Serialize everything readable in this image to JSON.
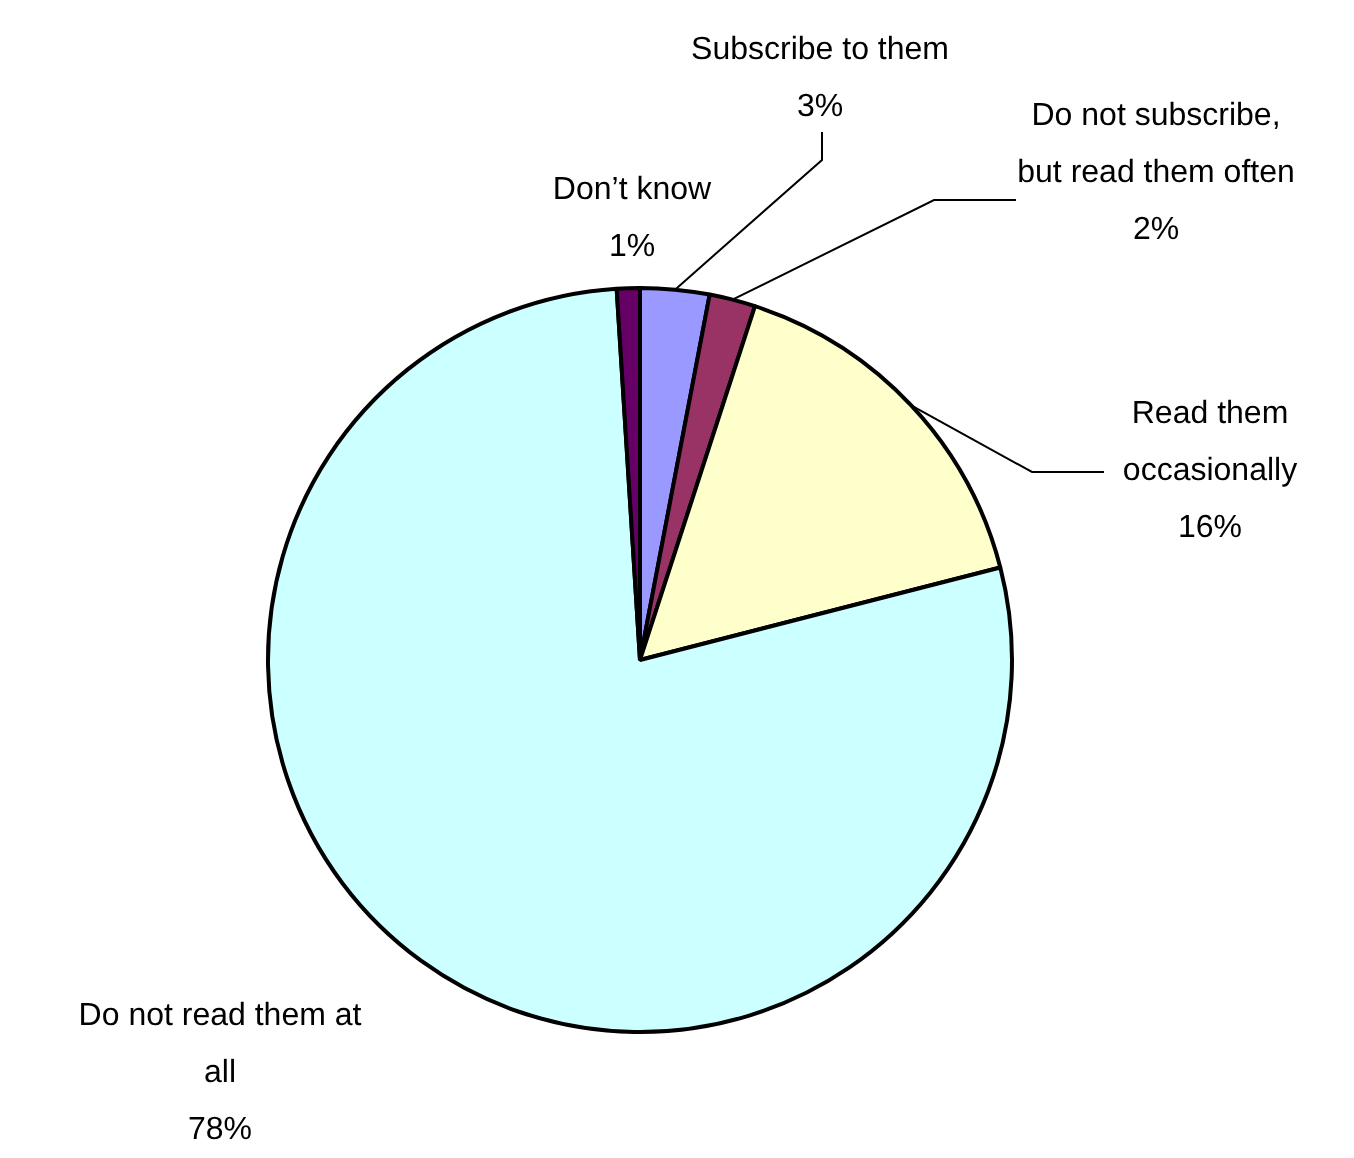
{
  "chart_data": {
    "type": "pie",
    "categories": [
      "Subscribe to them",
      "Do not subscribe, but read them often",
      "Read them occasionally",
      "Do not read them at all",
      "Don’t know"
    ],
    "values": [
      3,
      2,
      16,
      78,
      1
    ],
    "value_labels": [
      "3%",
      "2%",
      "16%",
      "78%",
      "1%"
    ],
    "colors": [
      "#9999ff",
      "#993366",
      "#ffffcc",
      "#ccffff",
      "#660066"
    ],
    "legend": false
  }
}
